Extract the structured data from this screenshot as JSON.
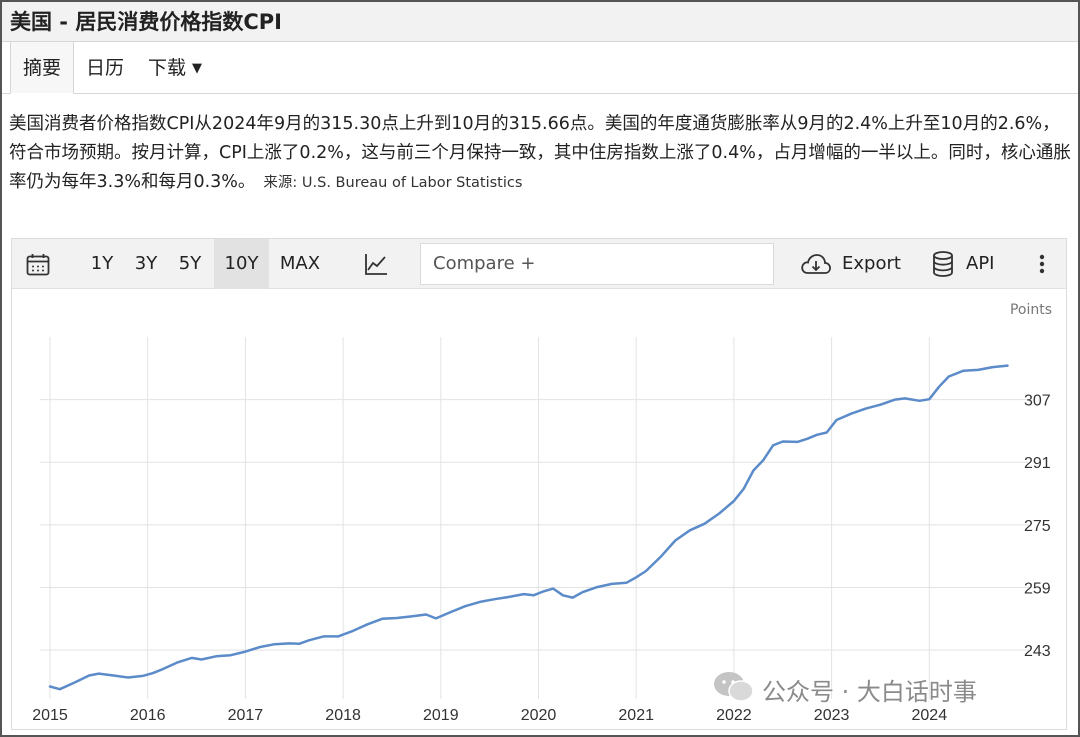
{
  "header": {
    "title": "美国 - 居民消费价格指数CPI"
  },
  "tabs": [
    {
      "label": "摘要",
      "active": true
    },
    {
      "label": "日历",
      "active": false
    },
    {
      "label": "下载",
      "active": false,
      "has_dropdown": true
    }
  ],
  "summary": {
    "text": "美国消费者价格指数CPI从2024年9月的315.30点上升到10月的315.66点。美国的年度通货膨胀率从9月的2.4%上升至10月的2.6%，符合市场预期。按月计算，CPI上涨了0.2%，这与前三个月保持一致，其中住房指数上涨了0.4%，占月增幅的一半以上。同时，核心通胀率仍为每年3.3%和每月0.3%。",
    "source": "来源: U.S. Bureau of Labor Statistics"
  },
  "toolbar": {
    "calendar_icon": "calendar-icon",
    "ranges": [
      "1Y",
      "3Y",
      "5Y",
      "10Y",
      "MAX"
    ],
    "active_range": "10Y",
    "chart_type_icon": "line-chart-icon",
    "compare_placeholder": "Compare +",
    "export_label": "Export",
    "api_label": "API",
    "more_icon": "more-vertical-icon"
  },
  "colors": {
    "line": "#5b8bc9",
    "grid": "#e3e3e3",
    "axis_text": "#333333"
  },
  "chart_data": {
    "type": "line",
    "title": "",
    "unit_label": "Points",
    "xlabel": "",
    "ylabel": "",
    "x_ticks": [
      "2015",
      "2016",
      "2017",
      "2018",
      "2019",
      "2020",
      "2021",
      "2022",
      "2023",
      "2024"
    ],
    "y_ticks": [
      243,
      259,
      275,
      291,
      307
    ],
    "xlim": [
      2015.0,
      2025.0
    ],
    "ylim": [
      230.5,
      323.0
    ],
    "grid": true,
    "series": [
      {
        "name": "",
        "color": "#5b8bc9",
        "x": [
          2015.0,
          2015.1,
          2015.25,
          2015.4,
          2015.5,
          2015.65,
          2015.8,
          2015.95,
          2016.05,
          2016.15,
          2016.3,
          2016.45,
          2016.55,
          2016.7,
          2016.85,
          2017.0,
          2017.15,
          2017.3,
          2017.45,
          2017.55,
          2017.65,
          2017.8,
          2017.95,
          2018.1,
          2018.25,
          2018.4,
          2018.55,
          2018.7,
          2018.85,
          2018.95,
          2019.1,
          2019.25,
          2019.4,
          2019.55,
          2019.7,
          2019.85,
          2019.95,
          2020.05,
          2020.15,
          2020.25,
          2020.35,
          2020.45,
          2020.6,
          2020.75,
          2020.9,
          2021.0,
          2021.1,
          2021.25,
          2021.4,
          2021.55,
          2021.7,
          2021.85,
          2022.0,
          2022.1,
          2022.2,
          2022.3,
          2022.4,
          2022.5,
          2022.65,
          2022.75,
          2022.85,
          2022.95,
          2023.05,
          2023.2,
          2023.35,
          2023.5,
          2023.65,
          2023.75,
          2023.9,
          2024.0,
          2024.1,
          2024.2,
          2024.35,
          2024.5,
          2024.65,
          2024.8
        ],
        "y": [
          233.7,
          233.0,
          234.7,
          236.5,
          237.0,
          236.5,
          236.0,
          236.4,
          237.1,
          238.1,
          239.8,
          241.0,
          240.6,
          241.4,
          241.7,
          242.6,
          243.8,
          244.5,
          244.7,
          244.6,
          245.5,
          246.5,
          246.5,
          247.9,
          249.6,
          251.0,
          251.2,
          251.6,
          252.1,
          251.1,
          252.7,
          254.2,
          255.3,
          256.0,
          256.6,
          257.3,
          257.0,
          258.0,
          258.7,
          257.0,
          256.4,
          257.8,
          259.1,
          259.9,
          260.2,
          261.6,
          263.2,
          266.8,
          271.0,
          273.6,
          275.3,
          277.9,
          281.1,
          284.2,
          288.9,
          291.5,
          295.3,
          296.3,
          296.2,
          297.0,
          298.0,
          298.6,
          301.8,
          303.4,
          304.7,
          305.7,
          307.0,
          307.3,
          306.7,
          307.1,
          310.3,
          312.9,
          314.4,
          314.6,
          315.3,
          315.7
        ]
      }
    ]
  },
  "watermark": {
    "text": "公众号 · 大白话时事"
  }
}
